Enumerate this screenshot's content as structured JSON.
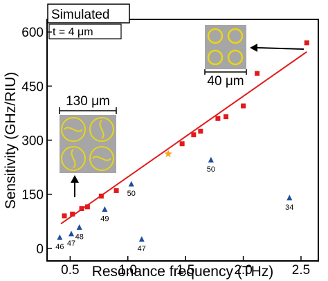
{
  "chart_data": {
    "type": "scatter",
    "xlabel": "Resonance frequency (THz)",
    "ylabel": "Sensitivity (GHz/RIU)",
    "xlim": [
      0.3,
      2.65
    ],
    "ylim": [
      -35,
      635
    ],
    "xticks": [
      {
        "value": 0.5,
        "label": "0.5"
      },
      {
        "value": 1.0,
        "label": "1.0"
      },
      {
        "value": 1.5,
        "label": "1.5"
      },
      {
        "value": 2.0,
        "label": "2.0"
      },
      {
        "value": 2.5,
        "label": "2.5"
      }
    ],
    "yticks": [
      {
        "value": 0,
        "label": "0"
      },
      {
        "value": 150,
        "label": "150"
      },
      {
        "value": 300,
        "label": "300"
      },
      {
        "value": 450,
        "label": "450"
      },
      {
        "value": 600,
        "label": "600"
      }
    ],
    "grid": false,
    "annotations": {
      "simulated": "Simulated",
      "thickness": "t = 4 μm",
      "scale_large": "130 μm",
      "scale_small": "40 μm"
    },
    "series": [
      {
        "marker": "square",
        "color": "#e31a1c",
        "points": [
          {
            "x": 0.45,
            "y": 90
          },
          {
            "x": 0.52,
            "y": 95
          },
          {
            "x": 0.6,
            "y": 110
          },
          {
            "x": 0.65,
            "y": 115
          },
          {
            "x": 0.77,
            "y": 145
          },
          {
            "x": 0.9,
            "y": 160
          },
          {
            "x": 1.47,
            "y": 290
          },
          {
            "x": 1.57,
            "y": 315
          },
          {
            "x": 1.63,
            "y": 325
          },
          {
            "x": 1.78,
            "y": 360
          },
          {
            "x": 1.85,
            "y": 365
          },
          {
            "x": 2.0,
            "y": 395
          },
          {
            "x": 2.12,
            "y": 485
          },
          {
            "x": 2.55,
            "y": 570
          }
        ]
      },
      {
        "marker": "star",
        "color": "#f5a623",
        "points": [
          {
            "x": 1.35,
            "y": 262
          }
        ]
      },
      {
        "marker": "triangle",
        "color": "#1f4e9c",
        "points": [
          {
            "x": 0.41,
            "y": 30,
            "label": "46"
          },
          {
            "x": 0.51,
            "y": 40,
            "label": "47"
          },
          {
            "x": 0.58,
            "y": 58,
            "label": "48"
          },
          {
            "x": 0.8,
            "y": 108,
            "label": "49"
          },
          {
            "x": 1.03,
            "y": 178,
            "label": "50"
          },
          {
            "x": 1.12,
            "y": 25,
            "label": "47"
          },
          {
            "x": 1.72,
            "y": 245,
            "label": "50"
          },
          {
            "x": 2.4,
            "y": 140,
            "label": "34"
          }
        ]
      }
    ],
    "fit_line": {
      "color": "#e31a1c",
      "from": {
        "x": 0.42,
        "y": 68
      },
      "to": {
        "x": 2.55,
        "y": 545
      }
    }
  },
  "colors": {
    "panel_fill": "#a6a6a6",
    "ring_color": "#e8d51a"
  }
}
